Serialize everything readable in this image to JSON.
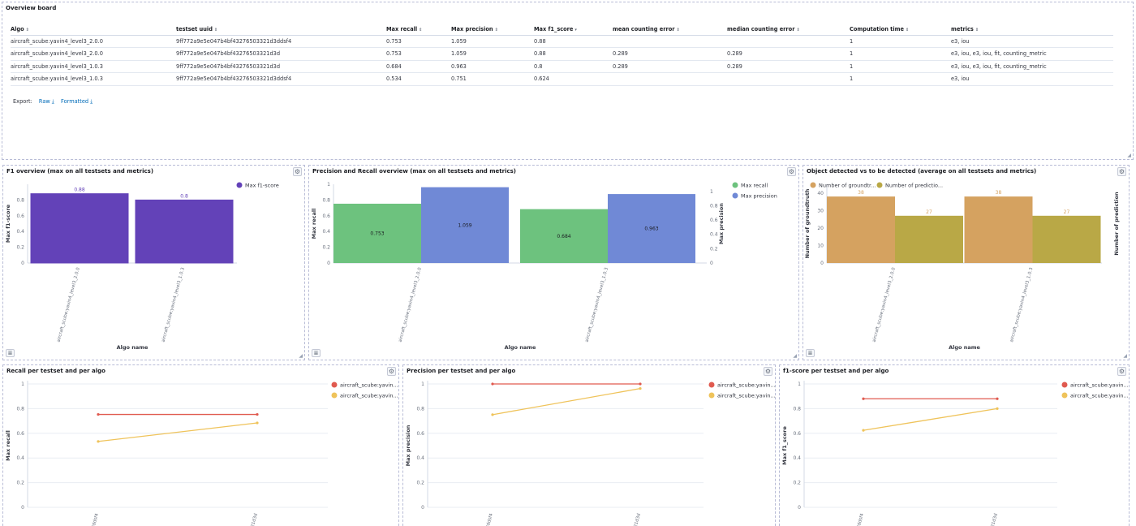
{
  "overview": {
    "title": "Overview board",
    "columns": [
      "Algo",
      "testset uuid",
      "Max recall",
      "Max precision",
      "Max f1_score",
      "mean counting error",
      "median counting error",
      "Computation time",
      "metrics"
    ],
    "rows": [
      [
        "aircraft_scube:yavin4_level3_2.0.0",
        "9ff772a9e5e047b4bf43276503321d3ddsf4",
        "0.753",
        "1.059",
        "0.88",
        "",
        "",
        "1",
        "e3, iou"
      ],
      [
        "aircraft_scube:yavin4_level3_2.0.0",
        "9ff772a9e5e047b4bf43276503321d3d",
        "0.753",
        "1.059",
        "0.88",
        "0.289",
        "0.289",
        "1",
        "e3, iou, e3, iou, fit, counting_metric"
      ],
      [
        "aircraft_scube:yavin4_level3_1.0.3",
        "9ff772a9e5e047b4bf43276503321d3d",
        "0.684",
        "0.963",
        "0.8",
        "0.289",
        "0.289",
        "1",
        "e3, iou, e3, iou, fit, counting_metric"
      ],
      [
        "aircraft_scube:yavin4_level3_1.0.3",
        "9ff772a9e5e047b4bf43276503321d3ddsf4",
        "0.534",
        "0.751",
        "0.624",
        "",
        "",
        "1",
        "e3, iou"
      ]
    ],
    "export_label": "Export:",
    "export_raw": "Raw",
    "export_formatted": "Formatted"
  },
  "colors": {
    "f1": "#6342b8",
    "recall": "#6dc27e",
    "precision": "#7089d6",
    "groundtruth": "#d5a260",
    "prediction": "#b9a846",
    "series_a": "#e05a4f",
    "series_b": "#efc35a"
  },
  "chart_data": [
    {
      "type": "bar",
      "title": "F1 overview (max on all testsets and metrics)",
      "categories": [
        "aircraft_scube:yavin4_level3_2.0.0",
        "aircraft_scube:yavin4_level3_1.0.3"
      ],
      "series": [
        {
          "name": "Max f1-score",
          "values": [
            0.88,
            0.8
          ]
        }
      ],
      "xlabel": "Algo name",
      "ylabel": "Max f1-score",
      "ylim": [
        0,
        1
      ],
      "yticks": [
        "0",
        "0.2",
        "0.4",
        "0.6",
        "0.8"
      ],
      "legend": "top-right"
    },
    {
      "type": "bar",
      "title": "Precision and Recall overview (max on all testsets and metrics)",
      "categories": [
        "aircraft_scube:yavin4_level3_2.0.0",
        "aircraft_scube:yavin4_level3_1.0.3"
      ],
      "series": [
        {
          "name": "Max recall",
          "values": [
            0.753,
            0.684
          ]
        },
        {
          "name": "Max precision",
          "values": [
            1.059,
            0.963
          ]
        }
      ],
      "xlabel": "Algo name",
      "ylabel": "Max recall",
      "ylabel_right": "Max precision",
      "ylim": [
        0,
        1
      ],
      "ylim_right": [
        0,
        1.1
      ],
      "yticks": [
        "0",
        "0.2",
        "0.4",
        "0.6",
        "0.8",
        "1"
      ],
      "yticks_right": [
        "0",
        "0.2",
        "0.4",
        "0.6",
        "0.8",
        "1"
      ],
      "legend": "top-right"
    },
    {
      "type": "bar",
      "title": "Object detected vs to be detected (average on all testsets and metrics)",
      "categories": [
        "aircraft_scube:yavin4_level3_2.0.0",
        "aircraft_scube:yavin4_level3_1.0.3"
      ],
      "series": [
        {
          "name": "Number of groundtr...",
          "values": [
            38,
            38
          ]
        },
        {
          "name": "Number of predictio...",
          "values": [
            27,
            27
          ]
        }
      ],
      "xlabel": "Algo name",
      "ylabel": "Number of groundtruth",
      "ylabel_right": "Number of prediction",
      "ylim": [
        0,
        45
      ],
      "yticks": [
        "0",
        "10",
        "20",
        "30",
        "40"
      ],
      "legend": "top-left"
    },
    {
      "type": "line",
      "title": "Recall per testset and per algo",
      "x": [
        "...d3ddsf4",
        "...321d3d"
      ],
      "series": [
        {
          "name": "aircraft_scube:yavin...",
          "values": [
            0.753,
            0.753
          ]
        },
        {
          "name": "aircraft_scube:yavin...",
          "values": [
            0.534,
            0.684
          ]
        }
      ],
      "ylabel": "Max recall",
      "ylim": [
        0,
        1
      ],
      "yticks": [
        "0",
        "0.2",
        "0.4",
        "0.6",
        "0.8",
        "1"
      ],
      "legend": "top-right"
    },
    {
      "type": "line",
      "title": "Precision per testset and per algo",
      "x": [
        "...d3ddsf4",
        "...321d3d"
      ],
      "series": [
        {
          "name": "aircraft_scube:yavin...",
          "values": [
            1.059,
            1.059
          ]
        },
        {
          "name": "aircraft_scube:yavin...",
          "values": [
            0.751,
            0.963
          ]
        }
      ],
      "ylabel": "Max precision",
      "ylim": [
        0,
        1
      ],
      "yticks": [
        "0",
        "0.2",
        "0.4",
        "0.6",
        "0.8",
        "1"
      ],
      "legend": "top-right"
    },
    {
      "type": "line",
      "title": "f1-score per testset and per algo",
      "x": [
        "...d3ddsf4",
        "...321d3d"
      ],
      "series": [
        {
          "name": "aircraft_scube:yavin...",
          "values": [
            0.88,
            0.88
          ]
        },
        {
          "name": "aircraft_scube:yavin...",
          "values": [
            0.624,
            0.8
          ]
        }
      ],
      "ylabel": "Max f1_score",
      "ylim": [
        0,
        1
      ],
      "yticks": [
        "0",
        "0.2",
        "0.4",
        "0.6",
        "0.8",
        "1"
      ],
      "legend": "top-right"
    }
  ]
}
